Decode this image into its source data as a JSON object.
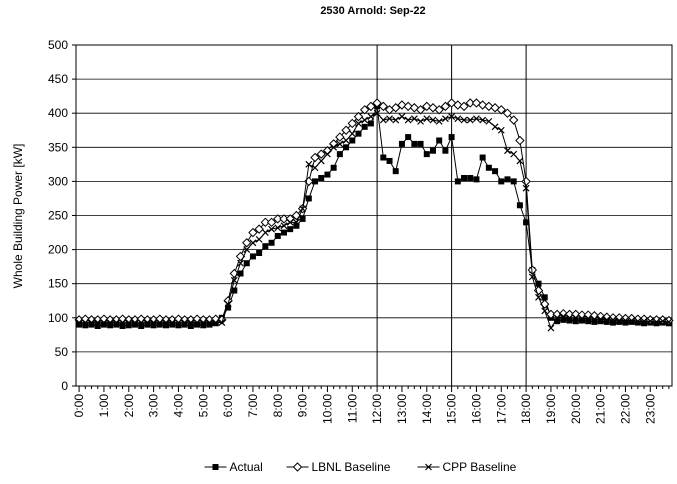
{
  "chart_data": {
    "type": "line",
    "title": "2530 Arnold: Sep-22",
    "y_label": "Whole Building Power [kW]",
    "categories": [
      "0:00",
      null,
      null,
      null,
      "1:00",
      null,
      null,
      null,
      "2:00",
      null,
      null,
      null,
      "3:00",
      null,
      null,
      null,
      "4:00",
      null,
      null,
      null,
      "5:00",
      null,
      null,
      null,
      "6:00",
      null,
      null,
      null,
      "7:00",
      null,
      null,
      null,
      "8:00",
      null,
      null,
      null,
      "9:00",
      null,
      null,
      null,
      "10:00",
      null,
      null,
      null,
      "11:00",
      null,
      null,
      null,
      "12:00",
      null,
      null,
      null,
      "13:00",
      null,
      null,
      null,
      "14:00",
      null,
      null,
      null,
      "15:00",
      null,
      null,
      null,
      "16:00",
      null,
      null,
      null,
      "17:00",
      null,
      null,
      null,
      "18:00",
      null,
      null,
      null,
      "19:00",
      null,
      null,
      null,
      "20:00",
      null,
      null,
      null,
      "21:00",
      null,
      null,
      null,
      "22:00",
      null,
      null,
      null,
      "23:00",
      null,
      null,
      null
    ],
    "series": [
      {
        "name": "Actual",
        "color": "#000000",
        "marker": "square",
        "values": [
          90,
          89,
          90,
          88,
          90,
          89,
          90,
          88,
          89,
          90,
          88,
          90,
          89,
          90,
          89,
          90,
          89,
          90,
          88,
          90,
          89,
          90,
          92,
          100,
          115,
          140,
          165,
          180,
          190,
          195,
          205,
          210,
          220,
          225,
          230,
          235,
          245,
          275,
          300,
          305,
          310,
          320,
          340,
          350,
          360,
          370,
          380,
          385,
          410,
          335,
          330,
          315,
          355,
          365,
          355,
          355,
          340,
          345,
          360,
          345,
          365,
          300,
          305,
          305,
          303,
          335,
          320,
          315,
          300,
          303,
          300,
          265,
          240,
          170,
          150,
          130,
          100,
          95,
          97,
          96,
          95,
          96,
          95,
          94,
          95,
          94,
          93,
          94,
          93,
          94,
          93,
          92,
          93,
          92,
          93,
          92
        ]
      },
      {
        "name": "LBNL Baseline",
        "color": "#000000",
        "marker": "diamond",
        "values": [
          97,
          98,
          97,
          97,
          98,
          97,
          97,
          98,
          97,
          97,
          98,
          97,
          97,
          98,
          97,
          97,
          98,
          97,
          97,
          98,
          97,
          97,
          98,
          97,
          125,
          165,
          190,
          210,
          225,
          230,
          240,
          240,
          245,
          245,
          245,
          250,
          260,
          300,
          335,
          340,
          345,
          355,
          365,
          375,
          385,
          395,
          405,
          410,
          415,
          410,
          405,
          408,
          412,
          410,
          408,
          405,
          410,
          408,
          405,
          410,
          415,
          412,
          410,
          415,
          415,
          412,
          410,
          408,
          405,
          400,
          390,
          360,
          300,
          170,
          140,
          120,
          105,
          105,
          106,
          105,
          105,
          104,
          104,
          103,
          102,
          101,
          100,
          100,
          99,
          99,
          98,
          98,
          97,
          97,
          97,
          96
        ]
      },
      {
        "name": "CPP Baseline",
        "color": "#000000",
        "marker": "x",
        "values": [
          93,
          93,
          93,
          93,
          93,
          93,
          93,
          93,
          93,
          93,
          93,
          93,
          93,
          93,
          93,
          93,
          93,
          93,
          93,
          93,
          93,
          93,
          93,
          93,
          120,
          155,
          180,
          200,
          210,
          215,
          225,
          230,
          232,
          235,
          240,
          240,
          260,
          325,
          320,
          330,
          340,
          350,
          355,
          360,
          370,
          385,
          390,
          395,
          400,
          390,
          392,
          390,
          395,
          390,
          392,
          388,
          392,
          390,
          388,
          392,
          395,
          392,
          390,
          390,
          392,
          390,
          388,
          380,
          375,
          345,
          340,
          330,
          290,
          160,
          130,
          110,
          85,
          100,
          102,
          100,
          100,
          99,
          99,
          98,
          98,
          97,
          97,
          96,
          96,
          96,
          95,
          95,
          95,
          94,
          95,
          94
        ]
      }
    ],
    "event_times": [
      "12:00",
      "15:00",
      "18:00"
    ],
    "ylim": [
      0,
      500
    ],
    "yticks": [
      0,
      50,
      100,
      150,
      200,
      250,
      300,
      350,
      400,
      450,
      500
    ],
    "grid": true,
    "legend": "bottom"
  }
}
